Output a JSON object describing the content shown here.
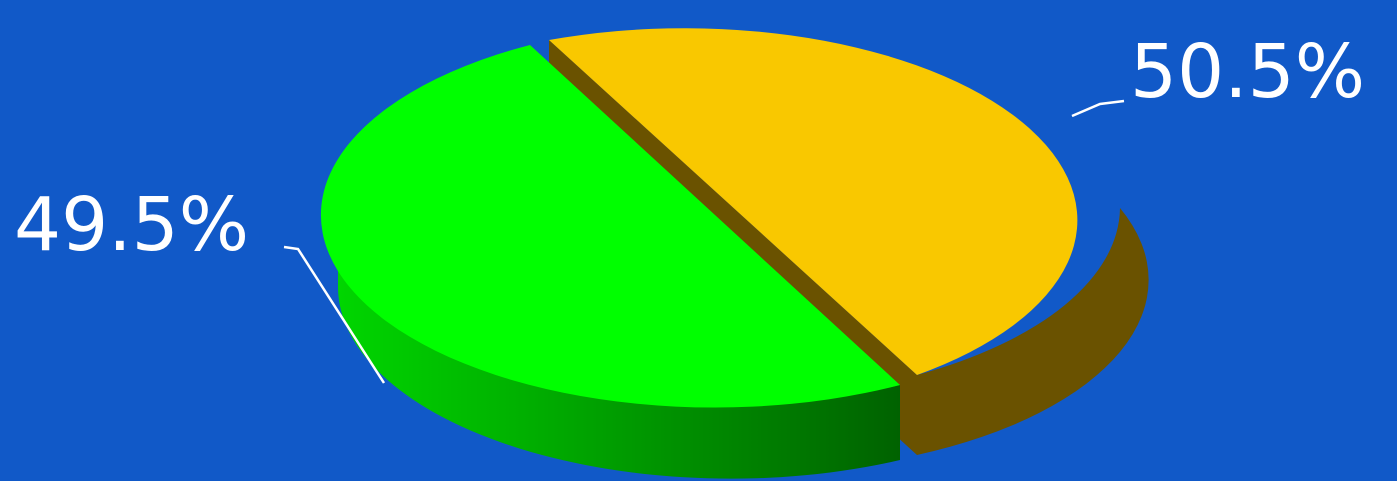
{
  "chart_data": {
    "type": "pie",
    "title": "",
    "style": "3d-exploded",
    "background_color": "#1159c8",
    "legend": "none",
    "slices": [
      {
        "value": 50.5,
        "label": "50.5%",
        "color": "#f9c800",
        "side_color": "#6a5200"
      },
      {
        "value": 49.5,
        "label": "49.5%",
        "color": "#00ff00",
        "side_color_light": "#00d600",
        "side_color_dark": "#006200"
      }
    ]
  }
}
